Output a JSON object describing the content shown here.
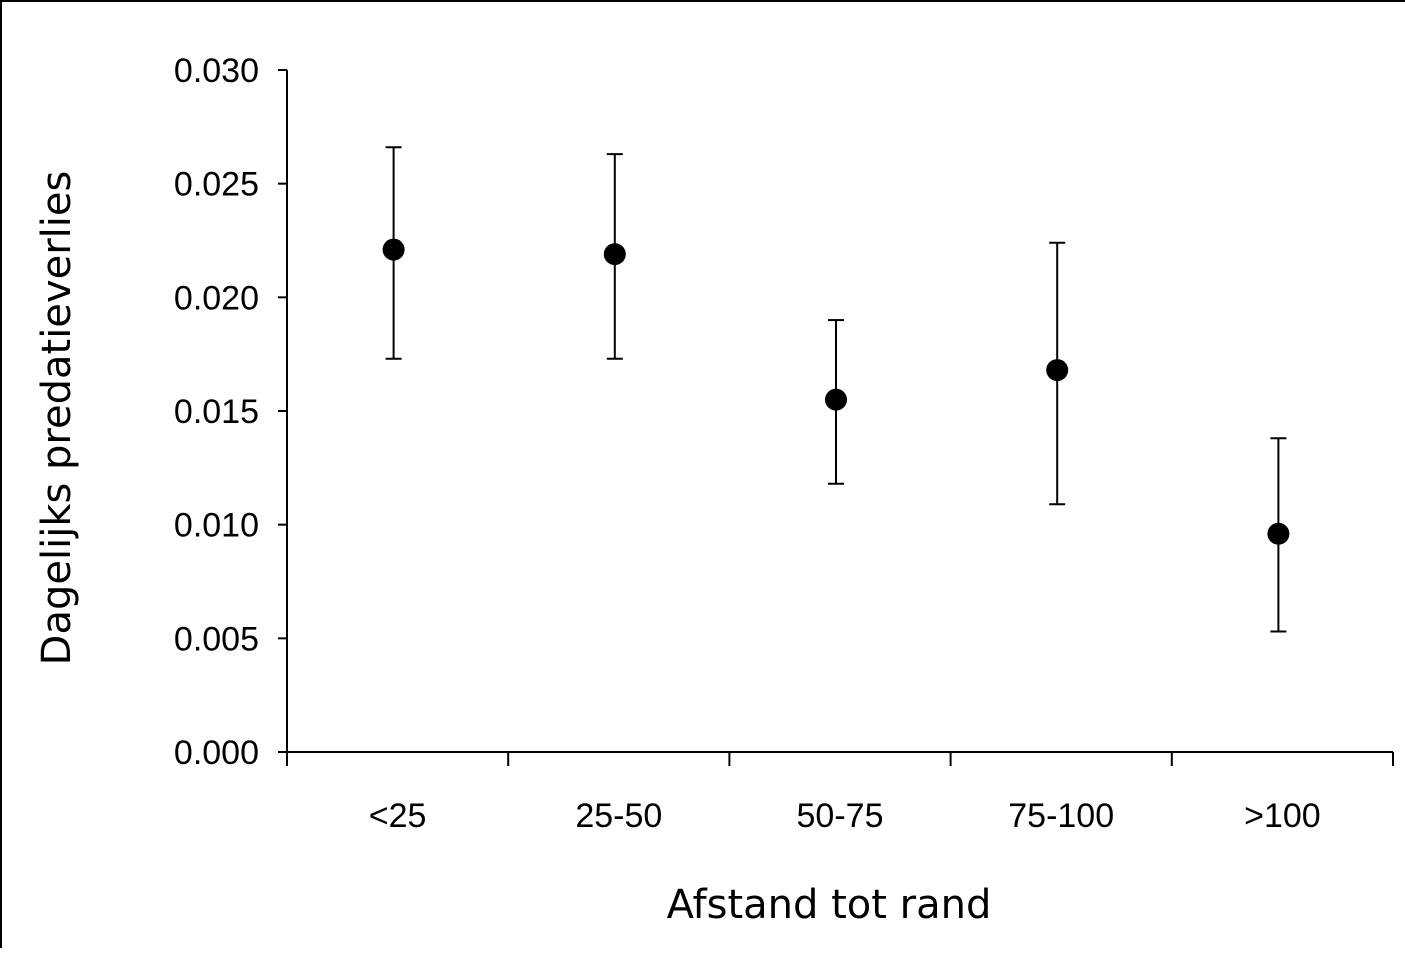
{
  "chart_data": {
    "type": "scatter",
    "title": "",
    "xlabel": "Afstand tot rand",
    "ylabel": "Dagelijks predatieverlies",
    "categories": [
      "<25",
      "25-50",
      "50-75",
      "75-100",
      ">100"
    ],
    "series": [
      {
        "values": [
          0.0221,
          0.0219,
          0.0155,
          0.0168,
          0.0096
        ],
        "error_upper": [
          0.0266,
          0.0263,
          0.019,
          0.0224,
          0.0138
        ],
        "error_lower": [
          0.0173,
          0.0173,
          0.0118,
          0.0109,
          0.0053
        ]
      }
    ],
    "ylim": [
      0,
      0.03
    ],
    "yticks": [
      "0.000",
      "0.005",
      "0.010",
      "0.015",
      "0.020",
      "0.025",
      "0.030"
    ],
    "grid": false,
    "legend": "none",
    "colors": {
      "marker": "#000000",
      "axis": "#000000",
      "background": "#ffffff"
    }
  }
}
